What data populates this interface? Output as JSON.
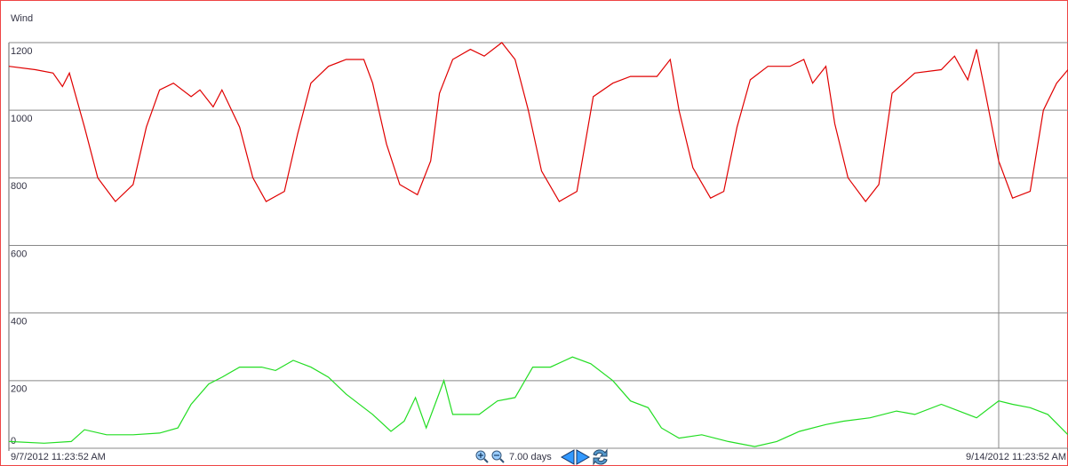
{
  "chart_data": {
    "type": "line",
    "title": "Wind",
    "xlim": [
      0,
      168
    ],
    "xticks": [
      {
        "value": 0,
        "label": "9/7/2012 11:23:52 AM"
      },
      {
        "value": 168,
        "label": "9/14/2012 11:23:52 AM"
      }
    ],
    "ylim": [
      0,
      1200
    ],
    "yticks": [
      0,
      200,
      400,
      600,
      800,
      1000,
      1200
    ],
    "grid": true,
    "series": [
      {
        "color": "#e00000",
        "x": [
          0,
          4.2,
          7,
          8.5,
          9.6,
          12,
          14.1,
          16.9,
          19.7,
          21.8,
          23.9,
          26.1,
          28.9,
          30.3,
          32.4,
          33.8,
          36.6,
          38.7,
          40.8,
          43.7,
          45.8,
          47.9,
          50.7,
          53.5,
          56.3,
          57.7,
          59.9,
          62,
          64.8,
          66.9,
          68.3,
          70.4,
          73.2,
          75.4,
          78.2,
          80.3,
          82.4,
          84.5,
          87.3,
          90.1,
          92.7,
          95.8,
          98.6,
          102.8,
          104.9,
          106.3,
          108.5,
          111.3,
          113.4,
          115.5,
          117.6,
          120.4,
          123.9,
          126.1,
          127.5,
          129.6,
          131,
          133.1,
          135.9,
          138,
          140.1,
          143.7,
          147.9,
          150,
          152.1,
          153.5,
          154.9,
          157,
          159.2,
          162,
          164.1,
          166.2,
          168
        ],
        "values": [
          1130,
          1120,
          1110,
          1070,
          1110,
          950,
          800,
          730,
          780,
          950,
          1060,
          1080,
          1040,
          1060,
          1010,
          1060,
          950,
          800,
          730,
          760,
          930,
          1080,
          1130,
          1150,
          1150,
          1080,
          900,
          780,
          750,
          850,
          1050,
          1150,
          1180,
          1160,
          1200,
          1150,
          1000,
          820,
          730,
          760,
          1040,
          1080,
          1100,
          1100,
          1150,
          1000,
          830,
          740,
          760,
          950,
          1090,
          1130,
          1130,
          1150,
          1080,
          1130,
          960,
          800,
          730,
          780,
          1050,
          1110,
          1120,
          1160,
          1090,
          1180,
          1050,
          850,
          740,
          760,
          1000,
          1080,
          1120
        ]
      },
      {
        "color": "#22dd22",
        "x": [
          0,
          5.6,
          9.9,
          12,
          15.5,
          19.7,
          23.9,
          26.8,
          28.9,
          31.7,
          33.8,
          36.6,
          40.1,
          42.3,
          45.1,
          47.9,
          50.7,
          53.5,
          57.7,
          60.6,
          62.7,
          64.5,
          66.2,
          69,
          70.4,
          74.6,
          77.5,
          80.3,
          83.1,
          85.9,
          89.4,
          92.3,
          95.8,
          98.6,
          101.4,
          103.5,
          106.3,
          109.9,
          114.1,
          118.3,
          121.8,
          125.4,
          129.6,
          132.4,
          136.6,
          140.8,
          143.7,
          147.9,
          150.7,
          153.5,
          157,
          159.2,
          162,
          164.8,
          168
        ],
        "values": [
          20,
          15,
          20,
          55,
          40,
          40,
          45,
          60,
          130,
          190,
          210,
          240,
          240,
          230,
          260,
          240,
          210,
          160,
          100,
          50,
          80,
          150,
          60,
          200,
          100,
          100,
          140,
          150,
          240,
          240,
          270,
          250,
          200,
          140,
          120,
          60,
          30,
          40,
          20,
          5,
          20,
          50,
          70,
          80,
          90,
          110,
          100,
          130,
          110,
          90,
          140,
          130,
          120,
          100,
          40
        ]
      }
    ]
  },
  "controls": {
    "range_label": "7.00 days"
  }
}
